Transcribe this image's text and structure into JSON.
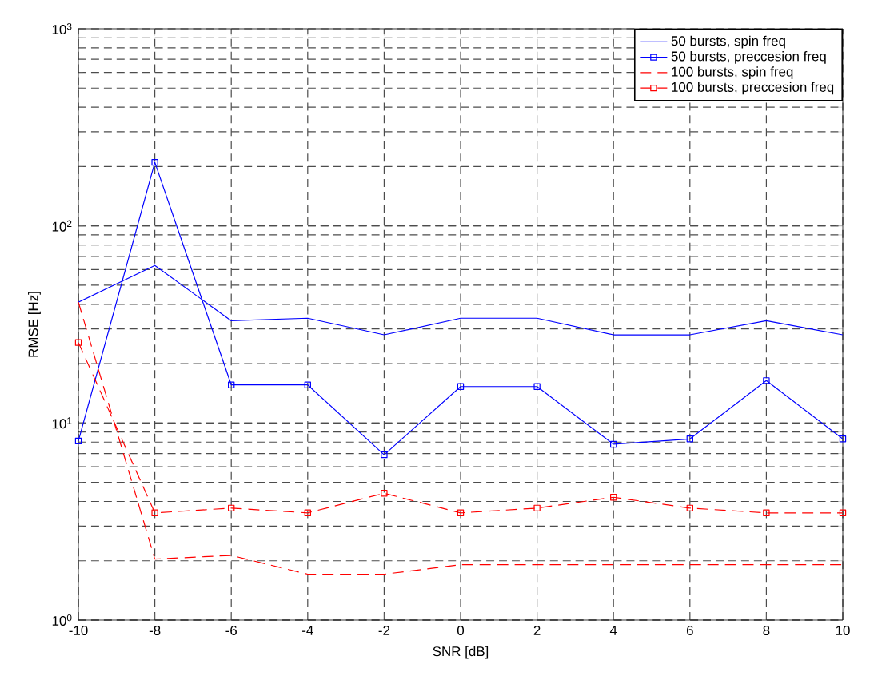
{
  "chart_data": {
    "type": "line",
    "xlabel": "SNR [dB]",
    "ylabel": "RMSE [Hz]",
    "log": "y",
    "x": [
      -10,
      -8,
      -6,
      -4,
      -2,
      0,
      2,
      4,
      6,
      8,
      10
    ],
    "xlim": [
      -10,
      10
    ],
    "xticks": [
      -10,
      -8,
      -6,
      -4,
      -2,
      0,
      2,
      4,
      6,
      8,
      10
    ],
    "ylim": [
      1,
      1000
    ],
    "yticks": [
      {
        "value": 1,
        "label": "10$^{0}$"
      },
      {
        "value": 10,
        "label": "10$^{1}$"
      },
      {
        "value": 100,
        "label": "10$^{2}$"
      },
      {
        "value": 1000,
        "label": "10$^{3}$"
      }
    ],
    "grid": true,
    "legend": "top right",
    "series": [
      {
        "name": "50 bursts, spin freq",
        "color": "#0000ff",
        "marker": "none",
        "line_style": "solid",
        "values": [
          41,
          63,
          33,
          34,
          28,
          34,
          34,
          28,
          28,
          33,
          28
        ]
      },
      {
        "name": "50 bursts, preccesion freq",
        "color": "#0000ff",
        "marker": "square",
        "line_style": "solid",
        "values": [
          8.1,
          210,
          15.6,
          15.6,
          6.9,
          15.3,
          15.3,
          7.8,
          8.3,
          16.4,
          8.3
        ]
      },
      {
        "name": "100 bursts, spin freq",
        "color": "#ff0000",
        "marker": "none",
        "line_style": "dashed",
        "values": [
          41,
          2.04,
          2.13,
          1.71,
          1.71,
          1.91,
          1.91,
          1.91,
          1.91,
          1.91,
          1.91
        ]
      },
      {
        "name": "100 bursts, preccesion freq",
        "color": "#ff0000",
        "marker": "square",
        "line_style": "dashed",
        "values": [
          25.6,
          3.5,
          3.7,
          3.5,
          4.4,
          3.5,
          3.7,
          4.2,
          3.7,
          3.5,
          3.5
        ]
      }
    ]
  }
}
